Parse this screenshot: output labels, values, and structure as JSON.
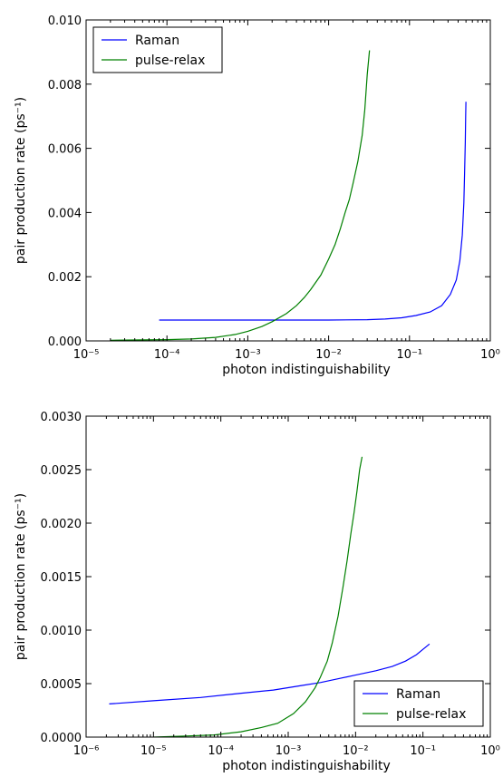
{
  "chart_data": [
    {
      "type": "line",
      "xscale": "log",
      "xlim": [
        1e-05,
        1
      ],
      "ylim": [
        0,
        0.01
      ],
      "xlabel": "photon indistinguishability",
      "ylabel": "pair production rate (ps⁻¹)",
      "x_tick_labels": [
        "10⁻⁵",
        "10⁻⁴",
        "10⁻³",
        "10⁻²",
        "10⁻¹",
        "10⁰"
      ],
      "y_tick_labels": [
        "0.000",
        "0.002",
        "0.004",
        "0.006",
        "0.008",
        "0.010"
      ],
      "legend": "top-left",
      "series": [
        {
          "name": "Raman",
          "color": "#0000ff",
          "x": [
            8e-05,
            0.0001,
            0.001,
            0.01,
            0.03,
            0.05,
            0.08,
            0.12,
            0.18,
            0.25,
            0.32,
            0.38,
            0.42,
            0.45,
            0.47,
            0.48,
            0.49,
            0.495,
            0.5
          ],
          "y": [
            0.00065,
            0.00065,
            0.00065,
            0.00065,
            0.00066,
            0.00068,
            0.00072,
            0.00079,
            0.0009,
            0.0011,
            0.00145,
            0.0019,
            0.0025,
            0.0033,
            0.0043,
            0.0052,
            0.0062,
            0.007,
            0.00745
          ]
        },
        {
          "name": "pulse-relax",
          "color": "#008000",
          "x": [
            2e-05,
            5e-05,
            0.0001,
            0.0002,
            0.0004,
            0.0007,
            0.001,
            0.0015,
            0.002,
            0.003,
            0.004,
            0.005,
            0.006,
            0.008,
            0.01,
            0.012,
            0.014,
            0.016,
            0.018,
            0.02,
            0.023,
            0.026,
            0.028,
            0.03,
            0.032
          ],
          "y": [
            2e-05,
            3e-05,
            4e-05,
            6e-05,
            0.00011,
            0.0002,
            0.0003,
            0.00045,
            0.0006,
            0.00085,
            0.0011,
            0.00135,
            0.0016,
            0.00205,
            0.00255,
            0.003,
            0.0035,
            0.004,
            0.0044,
            0.0049,
            0.0056,
            0.0064,
            0.0072,
            0.0083,
            0.00905
          ]
        }
      ]
    },
    {
      "type": "line",
      "xscale": "log",
      "xlim": [
        1e-06,
        1
      ],
      "ylim": [
        0,
        0.003
      ],
      "xlabel": "photon indistinguishability",
      "ylabel": "pair production rate (ps⁻¹)",
      "x_tick_labels": [
        "10⁻⁶",
        "10⁻⁵",
        "10⁻⁴",
        "10⁻³",
        "10⁻²",
        "10⁻¹",
        "10⁰"
      ],
      "y_tick_labels": [
        "0.0000",
        "0.0005",
        "0.0010",
        "0.0015",
        "0.0020",
        "0.0025",
        "0.0030"
      ],
      "legend": "bottom-right",
      "series": [
        {
          "name": "Raman",
          "color": "#0000ff",
          "x": [
            2.2e-06,
            1e-05,
            5e-05,
            0.0002,
            0.0006,
            0.0015,
            0.003,
            0.006,
            0.01,
            0.02,
            0.035,
            0.055,
            0.08,
            0.1,
            0.125
          ],
          "y": [
            0.00031,
            0.00034,
            0.00037,
            0.00041,
            0.00044,
            0.00048,
            0.00051,
            0.00055,
            0.00058,
            0.00062,
            0.00066,
            0.00071,
            0.00077,
            0.00082,
            0.00087
          ]
        },
        {
          "name": "pulse-relax",
          "color": "#008000",
          "x": [
            1e-05,
            3e-05,
            8e-05,
            0.0002,
            0.0004,
            0.0007,
            0.0012,
            0.0018,
            0.0025,
            0.003,
            0.0038,
            0.0045,
            0.0055,
            0.0065,
            0.0075,
            0.0085,
            0.0095,
            0.0105,
            0.0115,
            0.0125
          ],
          "y": [
            0.0,
            1e-05,
            2e-05,
            5e-05,
            9e-05,
            0.00013,
            0.00022,
            0.00033,
            0.00046,
            0.00056,
            0.00071,
            0.00088,
            0.00113,
            0.0014,
            0.00165,
            0.0019,
            0.0021,
            0.0023,
            0.0025,
            0.00262
          ]
        }
      ]
    }
  ]
}
